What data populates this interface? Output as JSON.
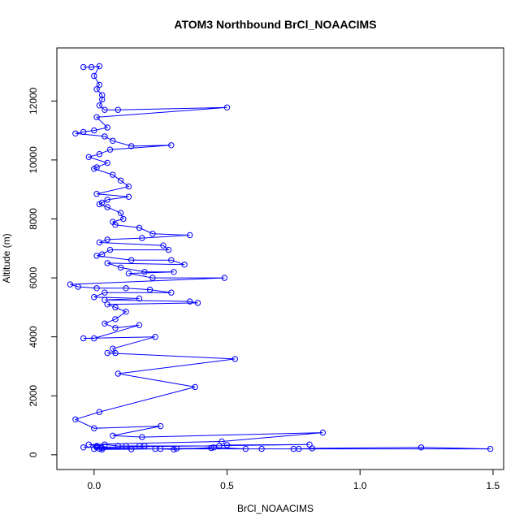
{
  "chart_data": {
    "type": "line",
    "title": "ATOM3 Northbound BrCl_NOAACIMS",
    "xlabel": "BrCl_NOAACIMS",
    "ylabel": "Altitude (m)",
    "xlim": [
      -0.14,
      1.54
    ],
    "ylim": [
      -500,
      13800
    ],
    "xticks": [
      0.0,
      0.5,
      1.0,
      1.5
    ],
    "xtick_labels": [
      "0.0",
      "0.5",
      "1.0",
      "1.5"
    ],
    "yticks": [
      0,
      2000,
      4000,
      6000,
      8000,
      10000,
      12000
    ],
    "ytick_labels": [
      "0",
      "2000",
      "4000",
      "6000",
      "8000",
      "10000",
      "12000"
    ],
    "grid": false,
    "series": [
      {
        "color": "#0000ff",
        "marker": "open-circle",
        "points": [
          [
            -0.04,
            13150
          ],
          [
            -0.01,
            13150
          ],
          [
            0.02,
            13180
          ],
          [
            0.0,
            12850
          ],
          [
            0.02,
            12550
          ],
          [
            0.01,
            12400
          ],
          [
            0.03,
            12200
          ],
          [
            0.03,
            12050
          ],
          [
            0.02,
            11850
          ],
          [
            0.04,
            11700
          ],
          [
            0.09,
            11700
          ],
          [
            0.5,
            11780
          ],
          [
            0.01,
            11450
          ],
          [
            0.05,
            11100
          ],
          [
            0.0,
            11000
          ],
          [
            -0.04,
            10950
          ],
          [
            -0.07,
            10900
          ],
          [
            0.04,
            10800
          ],
          [
            0.07,
            10650
          ],
          [
            0.14,
            10470
          ],
          [
            0.29,
            10500
          ],
          [
            0.06,
            10350
          ],
          [
            0.02,
            10200
          ],
          [
            -0.02,
            10100
          ],
          [
            0.05,
            9900
          ],
          [
            0.01,
            9750
          ],
          [
            0.0,
            9700
          ],
          [
            0.07,
            9500
          ],
          [
            0.1,
            9300
          ],
          [
            0.13,
            9100
          ],
          [
            0.01,
            8850
          ],
          [
            0.13,
            8750
          ],
          [
            0.05,
            8650
          ],
          [
            0.03,
            8550
          ],
          [
            0.02,
            8500
          ],
          [
            0.05,
            8400
          ],
          [
            0.1,
            8200
          ],
          [
            0.11,
            8000
          ],
          [
            0.07,
            7900
          ],
          [
            0.08,
            7800
          ],
          [
            0.17,
            7700
          ],
          [
            0.22,
            7500
          ],
          [
            0.36,
            7450
          ],
          [
            0.18,
            7350
          ],
          [
            0.05,
            7300
          ],
          [
            0.02,
            7200
          ],
          [
            0.26,
            7100
          ],
          [
            0.28,
            6950
          ],
          [
            0.06,
            6950
          ],
          [
            0.03,
            6800
          ],
          [
            0.01,
            6750
          ],
          [
            0.14,
            6600
          ],
          [
            0.29,
            6600
          ],
          [
            0.34,
            6450
          ],
          [
            0.05,
            6500
          ],
          [
            0.1,
            6350
          ],
          [
            0.19,
            6200
          ],
          [
            0.3,
            6200
          ],
          [
            0.13,
            6150
          ],
          [
            0.22,
            6000
          ],
          [
            0.49,
            6000
          ],
          [
            -0.09,
            5780
          ],
          [
            -0.06,
            5700
          ],
          [
            0.01,
            5650
          ],
          [
            0.12,
            5650
          ],
          [
            0.21,
            5600
          ],
          [
            0.29,
            5500
          ],
          [
            0.04,
            5500
          ],
          [
            0.0,
            5350
          ],
          [
            0.17,
            5300
          ],
          [
            0.04,
            5250
          ],
          [
            0.36,
            5200
          ],
          [
            0.39,
            5150
          ],
          [
            0.05,
            5100
          ],
          [
            0.08,
            5000
          ],
          [
            0.12,
            4850
          ],
          [
            0.08,
            4600
          ],
          [
            0.04,
            4450
          ],
          [
            0.08,
            4300
          ],
          [
            0.17,
            4400
          ],
          [
            0.0,
            3950
          ],
          [
            -0.04,
            3950
          ],
          [
            0.23,
            4000
          ],
          [
            0.07,
            3600
          ],
          [
            0.08,
            3450
          ],
          [
            0.05,
            3450
          ],
          [
            0.53,
            3250
          ],
          [
            0.09,
            2750
          ],
          [
            0.38,
            2300
          ],
          [
            0.02,
            1450
          ],
          [
            -0.07,
            1200
          ],
          [
            0.0,
            900
          ],
          [
            0.25,
            970
          ],
          [
            0.07,
            650
          ],
          [
            0.18,
            600
          ],
          [
            0.86,
            750
          ],
          [
            0.48,
            450
          ],
          [
            -0.02,
            350
          ],
          [
            0.01,
            300
          ],
          [
            0.04,
            350
          ],
          [
            0.09,
            300
          ],
          [
            0.12,
            300
          ],
          [
            0.17,
            300
          ],
          [
            0.19,
            300
          ],
          [
            0.47,
            300
          ],
          [
            0.5,
            330
          ],
          [
            0.81,
            350
          ],
          [
            -0.04,
            250
          ],
          [
            0.01,
            250
          ],
          [
            0.03,
            230
          ],
          [
            0.23,
            200
          ],
          [
            0.25,
            200
          ],
          [
            0.3,
            180
          ],
          [
            0.45,
            250
          ],
          [
            0.57,
            200
          ],
          [
            0.63,
            200
          ],
          [
            0.75,
            200
          ],
          [
            0.77,
            200
          ],
          [
            0.82,
            220
          ],
          [
            1.23,
            250
          ],
          [
            1.49,
            200
          ],
          [
            0.0,
            200
          ],
          [
            0.02,
            200
          ],
          [
            0.03,
            180
          ],
          [
            0.14,
            190
          ],
          [
            0.31,
            210
          ],
          [
            0.44,
            230
          ]
        ]
      }
    ]
  }
}
